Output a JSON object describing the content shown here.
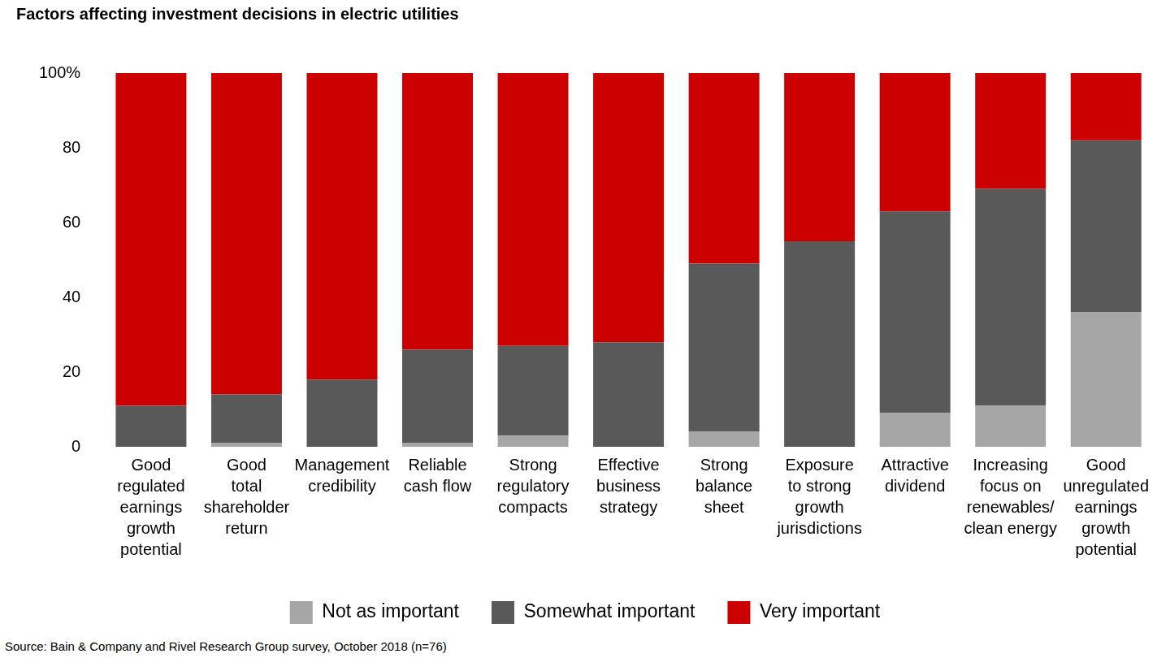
{
  "chart_data": {
    "type": "bar",
    "title": "Factors affecting investment decisions in electric utilities",
    "source": "Source: Bain & Company and Rivel Research Group survey, October 2018 (n=76)",
    "categories": [
      [
        "Good",
        "regulated",
        "earnings",
        "growth",
        "potential"
      ],
      [
        "Good",
        "total",
        "shareholder",
        "return"
      ],
      [
        "Management",
        "credibility"
      ],
      [
        "Reliable",
        "cash flow"
      ],
      [
        "Strong",
        "regulatory",
        "compacts"
      ],
      [
        "Effective",
        "business",
        "strategy"
      ],
      [
        "Strong",
        "balance",
        "sheet"
      ],
      [
        "Exposure",
        "to strong",
        "growth",
        "jurisdictions"
      ],
      [
        "Attractive",
        "dividend"
      ],
      [
        "Increasing",
        "focus on",
        "renewables/",
        "clean energy"
      ],
      [
        "Good",
        "unregulated",
        "earnings",
        "growth",
        "potential"
      ]
    ],
    "series": [
      {
        "name": "Not as important",
        "color": "#a6a6a6",
        "values": [
          0,
          1,
          0,
          1,
          3,
          0,
          4,
          0,
          9,
          11,
          36
        ]
      },
      {
        "name": "Somewhat important",
        "color": "#595959",
        "values": [
          11,
          13,
          18,
          25,
          24,
          28,
          45,
          55,
          54,
          58,
          46
        ]
      },
      {
        "name": "Very important",
        "color": "#cc0000",
        "values": [
          89,
          86,
          82,
          74,
          73,
          72,
          51,
          45,
          37,
          31,
          18
        ]
      }
    ],
    "stacked": true,
    "ylim": [
      0,
      100
    ],
    "yticks": [
      0,
      20,
      40,
      60,
      80,
      {
        "value": 100,
        "label": "100%"
      }
    ],
    "grid": false,
    "legend": "bottom"
  }
}
